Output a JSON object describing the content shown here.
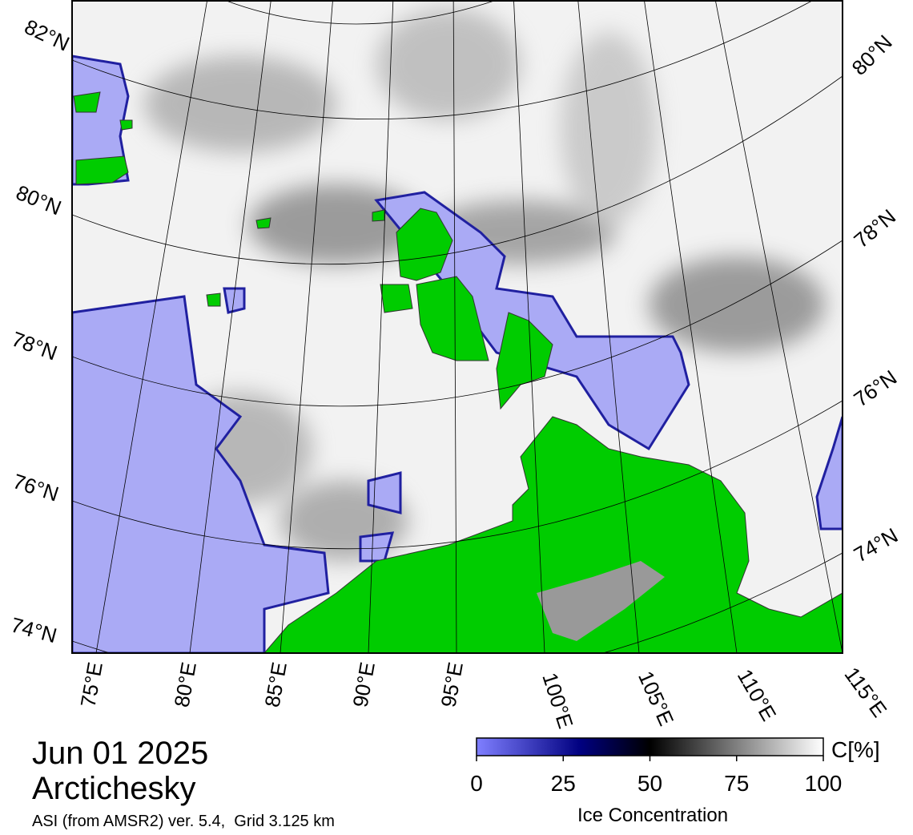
{
  "map": {
    "lat_labels_left": [
      "82°N",
      "80°N",
      "78°N",
      "76°N",
      "74°N"
    ],
    "lat_labels_right": [
      "80°N",
      "78°N",
      "76°N",
      "74°N"
    ],
    "lon_labels": [
      "75°E",
      "80°E",
      "85°E",
      "90°E",
      "95°E",
      "100°E",
      "105°E",
      "110°E",
      "115°E"
    ]
  },
  "info": {
    "date": "Jun 01 2025",
    "region": "Arctichesky",
    "source": "ASI (from AMSR2) ver. 5.4,  Grid 3.125 km"
  },
  "colorbar": {
    "title": "Ice Concentration",
    "unit": "C[%]",
    "lim": [
      0,
      100
    ],
    "ticks": [
      0,
      25,
      50,
      75,
      100
    ]
  }
}
